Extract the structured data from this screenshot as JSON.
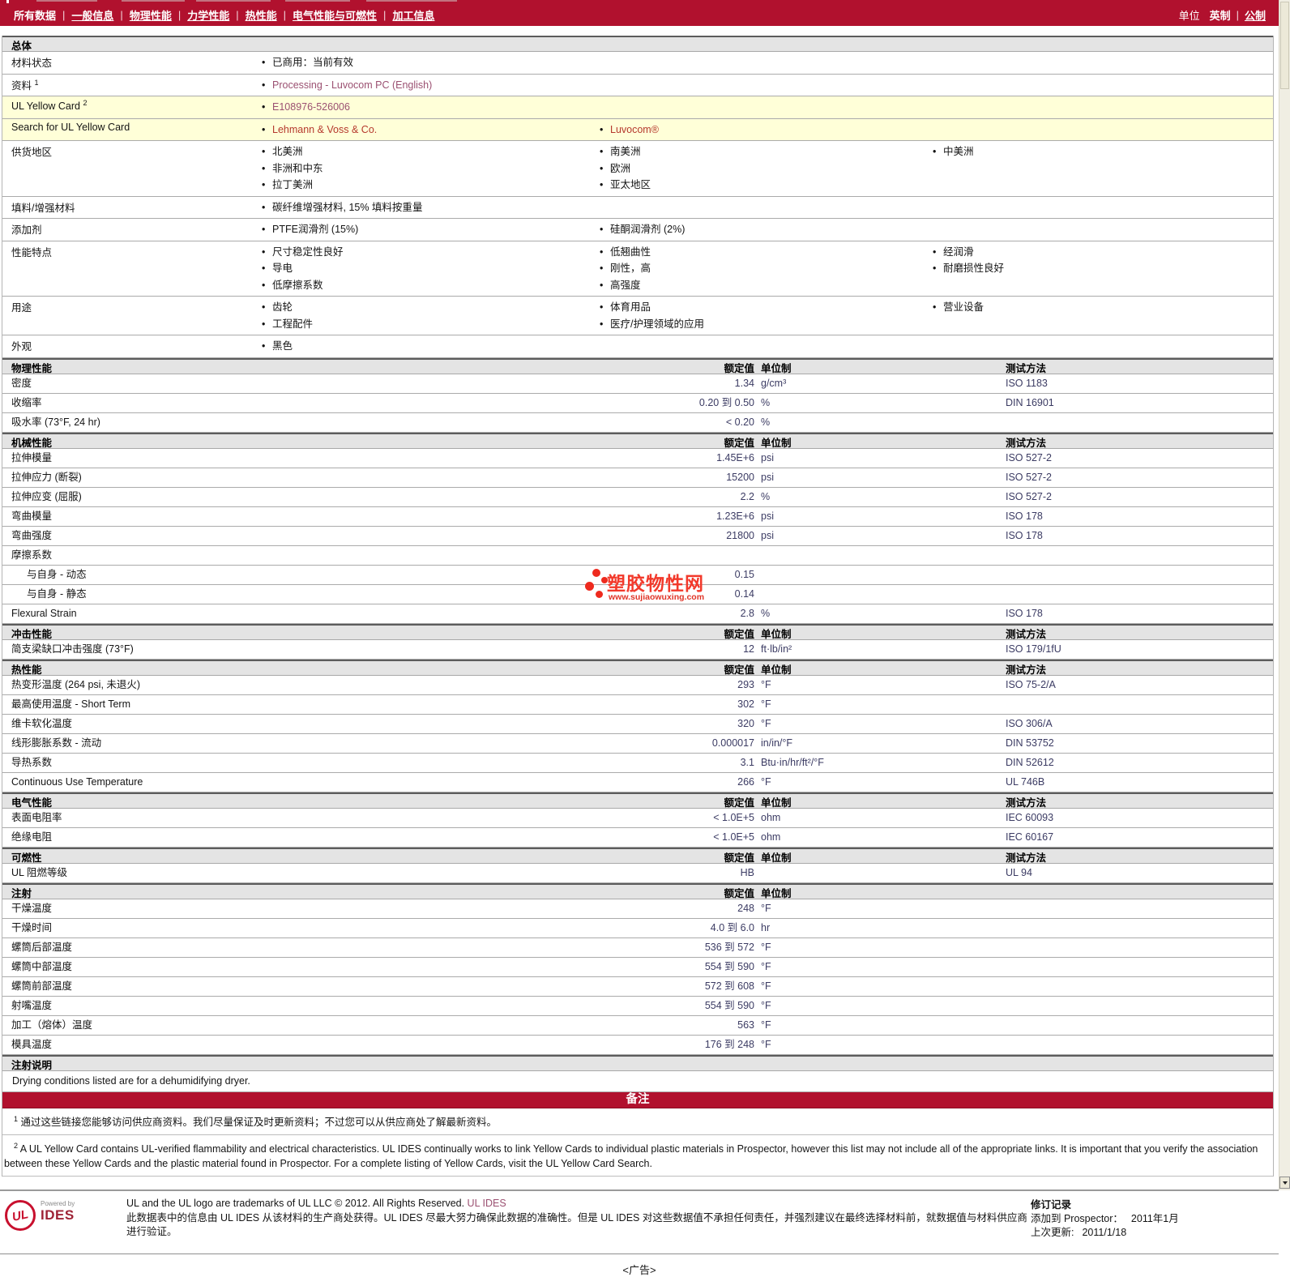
{
  "nav": {
    "items": [
      {
        "label": "所有数据",
        "active": true
      },
      {
        "label": "一般信息"
      },
      {
        "label": "物理性能"
      },
      {
        "label": "力学性能"
      },
      {
        "label": "热性能"
      },
      {
        "label": "电气性能与可燃性"
      },
      {
        "label": "加工信息"
      }
    ],
    "units_label": "单位",
    "units": [
      {
        "label": "英制",
        "active": true
      },
      {
        "label": "公制"
      }
    ]
  },
  "table_headers": {
    "value": "额定值",
    "unit": "单位制",
    "method": "测试方法"
  },
  "sections": [
    {
      "title": "总体",
      "type": "bullets",
      "rows": [
        {
          "label": "材料状态",
          "cols": [
            [
              "已商用：当前有效"
            ],
            [],
            []
          ]
        },
        {
          "label": "资料",
          "sup": "1",
          "cols": [
            [
              {
                "t": "Processing - Luvocom PC (English)",
                "c": "purple"
              }
            ],
            [],
            []
          ]
        },
        {
          "label": "UL Yellow Card",
          "sup": "2",
          "highlight": true,
          "cols": [
            [
              {
                "t": "E108976-526006",
                "c": "purple"
              }
            ],
            [],
            []
          ]
        },
        {
          "label": "Search for UL Yellow Card",
          "highlight": true,
          "cols": [
            [
              {
                "t": "Lehmann & Voss & Co.",
                "c": "red"
              }
            ],
            [
              {
                "t": "Luvocom®",
                "c": "red"
              }
            ],
            []
          ]
        },
        {
          "label": "供货地区",
          "cols": [
            [
              "北美洲",
              "非洲和中东",
              "拉丁美洲"
            ],
            [
              "南美洲",
              "欧洲",
              "亚太地区"
            ],
            [
              "中美洲"
            ]
          ]
        },
        {
          "label": "填料/增强材料",
          "cols": [
            [
              "碳纤维增强材料, 15% 填料按重量"
            ],
            [],
            []
          ]
        },
        {
          "label": "添加剂",
          "cols": [
            [
              "PTFE润滑剂 (15%)"
            ],
            [
              "硅酮润滑剂 (2%)"
            ],
            []
          ]
        },
        {
          "label": "性能特点",
          "cols": [
            [
              "尺寸稳定性良好",
              "导电",
              "低摩擦系数"
            ],
            [
              "低翘曲性",
              "刚性，高",
              "高强度"
            ],
            [
              "经润滑",
              "耐磨损性良好"
            ]
          ]
        },
        {
          "label": "用途",
          "cols": [
            [
              "齿轮",
              "工程配件"
            ],
            [
              "体育用品",
              "医疗/护理领域的应用"
            ],
            [
              "营业设备"
            ]
          ]
        },
        {
          "label": "外观",
          "cols": [
            [
              "黑色"
            ],
            [],
            []
          ]
        }
      ]
    },
    {
      "title": "物理性能",
      "type": "props",
      "show_method": true,
      "rows": [
        {
          "label": "密度",
          "num": "1.34",
          "unit": "g/cm³",
          "method": "ISO 1183"
        },
        {
          "label": "收缩率",
          "num": "0.20 到  0.50",
          "unit": "%",
          "method": "DIN 16901"
        },
        {
          "label": "吸水率  (73°F, 24 hr)",
          "num": "< 0.20",
          "unit": "%"
        }
      ]
    },
    {
      "title": "机械性能",
      "type": "props",
      "show_method": true,
      "rows": [
        {
          "label": "拉伸模量",
          "num": "1.45E+6",
          "unit": "psi",
          "method": "ISO 527-2"
        },
        {
          "label": "拉伸应力  (断裂)",
          "num": "15200",
          "unit": "psi",
          "method": "ISO 527-2"
        },
        {
          "label": "拉伸应变  (屈服)",
          "num": "2.2",
          "unit": "%",
          "method": "ISO 527-2"
        },
        {
          "label": "弯曲模量",
          "num": "1.23E+6",
          "unit": "psi",
          "method": "ISO 178"
        },
        {
          "label": "弯曲强度",
          "num": "21800",
          "unit": "psi",
          "method": "ISO 178"
        },
        {
          "label": "摩擦系数"
        },
        {
          "label": "与自身  - 动态",
          "indent": true,
          "num": "0.15"
        },
        {
          "label": "与自身  - 静态",
          "indent": true,
          "num": "0.14"
        },
        {
          "label": "Flexural Strain",
          "num": "2.8",
          "unit": "%",
          "method": "ISO 178"
        }
      ]
    },
    {
      "title": "冲击性能",
      "type": "props",
      "show_method": true,
      "rows": [
        {
          "label": "简支梁缺口冲击强度  (73°F)",
          "num": "12",
          "unit": "ft·lb/in²",
          "method": "ISO 179/1fU"
        }
      ]
    },
    {
      "title": "热性能",
      "type": "props",
      "show_method": true,
      "rows": [
        {
          "label": "热变形温度  (264 psi, 未退火)",
          "num": "293",
          "unit": "°F",
          "method": "ISO 75-2/A"
        },
        {
          "label": "最高使用温度  - Short Term",
          "num": "302",
          "unit": "°F"
        },
        {
          "label": "维卡软化温度",
          "num": "320",
          "unit": "°F",
          "method": "ISO 306/A"
        },
        {
          "label": "线形膨胀系数  - 流动",
          "num": "0.000017",
          "unit": "in/in/°F",
          "method": "DIN 53752"
        },
        {
          "label": "导热系数",
          "num": "3.1",
          "unit": "Btu·in/hr/ft²/°F",
          "method": "DIN 52612"
        },
        {
          "label": "Continuous Use Temperature",
          "num": "266",
          "unit": "°F",
          "method": "UL 746B"
        }
      ]
    },
    {
      "title": "电气性能",
      "type": "props",
      "show_method": true,
      "rows": [
        {
          "label": "表面电阻率",
          "num": "< 1.0E+5",
          "unit": "ohm",
          "method": "IEC 60093"
        },
        {
          "label": "绝缘电阻",
          "num": "< 1.0E+5",
          "unit": "ohm",
          "method": "IEC 60167"
        }
      ]
    },
    {
      "title": "可燃性",
      "type": "props",
      "show_method": true,
      "rows": [
        {
          "label": "UL 阻燃等级",
          "num": "HB",
          "method": "UL 94"
        }
      ]
    },
    {
      "title": "注射",
      "type": "props",
      "show_method": false,
      "rows": [
        {
          "label": "干燥温度",
          "num": "248",
          "unit": "°F"
        },
        {
          "label": "干燥时间",
          "num": "4.0 到  6.0",
          "unit": "hr"
        },
        {
          "label": "螺筒后部温度",
          "num": "536 到  572",
          "unit": "°F"
        },
        {
          "label": "螺筒中部温度",
          "num": "554 到  590",
          "unit": "°F"
        },
        {
          "label": "螺筒前部温度",
          "num": "572 到  608",
          "unit": "°F"
        },
        {
          "label": "射嘴温度",
          "num": "554 到  590",
          "unit": "°F"
        },
        {
          "label": "加工（熔体）温度",
          "num": "563",
          "unit": "°F"
        },
        {
          "label": "模具温度",
          "num": "176 到  248",
          "unit": "°F"
        }
      ]
    },
    {
      "title": "注射说明",
      "type": "text",
      "rows": [
        {
          "text": "Drying conditions listed are for a dehumidifying dryer."
        }
      ]
    }
  ],
  "remark": {
    "title": "备注"
  },
  "footnotes": [
    {
      "sup": "1",
      "text": "通过这些链接您能够访问供应商资料。我们尽量保证及时更新资料；不过您可以从供应商处了解最新资料。"
    },
    {
      "sup": "2",
      "text": "A UL Yellow Card contains UL-verified flammability and electrical characteristics. UL IDES continually works to link Yellow Cards to individual plastic materials in Prospector, however this list may not include all of the appropriate links. It is important that you verify the association between these Yellow Cards and the plastic material found in Prospector. For a complete listing of Yellow Cards, visit the UL Yellow Card Search."
    }
  ],
  "footer": {
    "logo_ul": "UL",
    "logo_powered": "Powered by",
    "logo_ides": "IDES",
    "line1": "UL and the UL logo are trademarks of UL LLC © 2012. All Rights Reserved. ",
    "line1_link": "UL IDES",
    "line2": "此数据表中的信息由  UL IDES 从该材料的生产商处获得。UL IDES 尽最大努力确保此数据的准确性。但是  UL IDES 对这些数据值不承担任何责任，并强烈建议在最终选择材料前，就数据值与材料供应商进行验证。",
    "revision": {
      "title": "修订记录",
      "added_label": "添加到  Prospector：",
      "added_value": "2011年1月",
      "updated_label": "上次更新:",
      "updated_value": "2011/1/18"
    }
  },
  "ad_label": "<广告>",
  "watermark": {
    "title": "塑胶物性网",
    "url": "www.sujiaowuxing.com"
  },
  "colors": {
    "accent_red": "#B1112E",
    "highlight_yellow": "#FFFFD8",
    "value_text": "#3B3B63",
    "link_red": "#B5382C",
    "link_purple": "#9B5071",
    "watermark_red": "#EE2A1E"
  }
}
